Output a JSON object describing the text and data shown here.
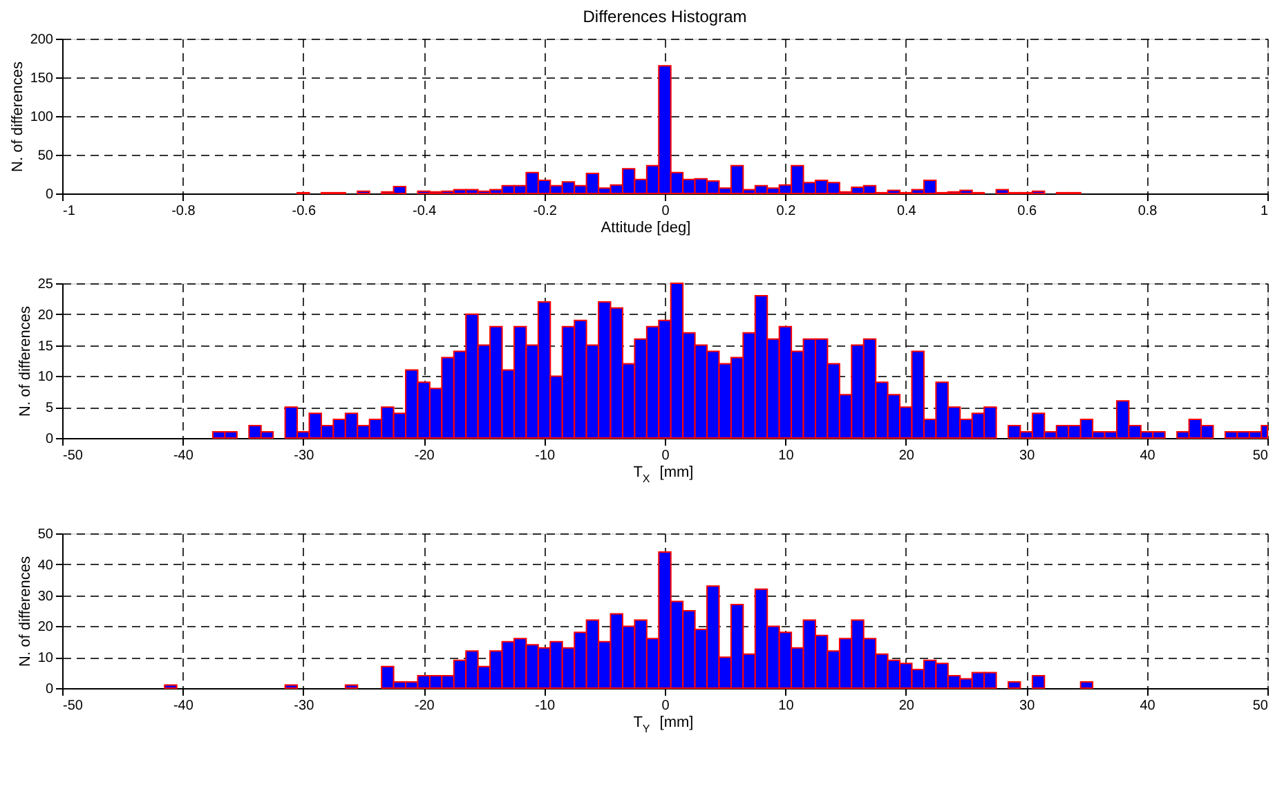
{
  "chart_data": [
    {
      "type": "histogram",
      "title": "Differences Histogram",
      "xlabel": "Attitude [deg]",
      "ylabel": "N. of differences",
      "color": "#0000ff",
      "grid": true,
      "bins": [
        -0.61,
        -0.59,
        -0.57,
        -0.55,
        -0.53,
        -0.51,
        -0.49,
        -0.47,
        -0.45,
        -0.43,
        -0.41,
        -0.39,
        -0.37,
        -0.35,
        -0.33,
        -0.31,
        -0.29,
        -0.27,
        -0.25,
        -0.23,
        -0.21,
        -0.19,
        -0.17,
        -0.15,
        -0.13,
        -0.11,
        -0.09,
        -0.07,
        -0.05,
        -0.03,
        -0.01,
        0.01,
        0.03,
        0.05,
        0.07,
        0.09,
        0.11,
        0.13,
        0.15,
        0.17,
        0.19,
        0.21,
        0.23,
        0.25,
        0.27,
        0.29,
        0.31,
        0.33,
        0.35,
        0.37,
        0.39,
        0.41,
        0.43,
        0.45,
        0.47,
        0.49,
        0.51,
        0.53,
        0.55,
        0.57,
        0.59,
        0.61,
        0.63,
        0.65,
        0.67,
        0.69
      ],
      "values": [
        1,
        0,
        1,
        1,
        0,
        3,
        0,
        2,
        9,
        0,
        3,
        2,
        3,
        5,
        5,
        3,
        5,
        10,
        10,
        27,
        17,
        10,
        15,
        10,
        26,
        7,
        11,
        32,
        18,
        36,
        165,
        27,
        18,
        19,
        16,
        7,
        36,
        5,
        10,
        7,
        11,
        36,
        14,
        17,
        14,
        2,
        8,
        10,
        1,
        4,
        1,
        5,
        17,
        1,
        2,
        4,
        1,
        0,
        5,
        1,
        1,
        3,
        0,
        1,
        1
      ],
      "xlim": [
        -1,
        1
      ],
      "xticks": [
        -1,
        -0.8,
        -0.6,
        -0.4,
        -0.2,
        0,
        0.2,
        0.4,
        0.6,
        0.8,
        1
      ],
      "ylim": [
        0,
        200
      ],
      "yticks": [
        0,
        50,
        100,
        150,
        200
      ]
    },
    {
      "type": "histogram",
      "xlabel": "T$_{X}$ [mm]",
      "ylabel": "N. of differences",
      "color": "#0000ff",
      "grid": true,
      "bins": [
        -37.5,
        -36.5,
        -35.5,
        -34.5,
        -33.5,
        -32.5,
        -31.5,
        -30.5,
        -29.5,
        -28.5,
        -27.5,
        -26.5,
        -25.5,
        -24.5,
        -23.5,
        -22.5,
        -21.5,
        -20.5,
        -19.5,
        -18.5,
        -17.5,
        -16.5,
        -15.5,
        -14.5,
        -13.5,
        -12.5,
        -11.5,
        -10.5,
        -9.5,
        -8.5,
        -7.5,
        -6.5,
        -5.5,
        -4.5,
        -3.5,
        -2.5,
        -1.5,
        -0.5,
        0.5,
        1.5,
        2.5,
        3.5,
        4.5,
        5.5,
        6.5,
        7.5,
        8.5,
        9.5,
        10.5,
        11.5,
        12.5,
        13.5,
        14.5,
        15.5,
        16.5,
        17.5,
        18.5,
        19.5,
        20.5,
        21.5,
        22.5,
        23.5,
        24.5,
        25.5,
        26.5,
        27.5,
        28.5,
        29.5,
        30.5,
        31.5,
        32.5,
        33.5,
        34.5,
        35.5,
        36.5,
        37.5,
        38.5,
        39.5,
        40.5,
        41.5,
        42.5,
        43.5,
        44.5,
        45.5,
        46.5,
        47.5,
        48.5,
        49.5,
        50
      ],
      "values": [
        1,
        1,
        0,
        2,
        1,
        0,
        5,
        1,
        4,
        2,
        3,
        4,
        2,
        3,
        5,
        4,
        11,
        9,
        8,
        13,
        14,
        20,
        15,
        18,
        11,
        18,
        15,
        22,
        10,
        18,
        19,
        15,
        22,
        21,
        12,
        16,
        18,
        19,
        25,
        17,
        15,
        14,
        12,
        13,
        17,
        23,
        16,
        18,
        14,
        16,
        16,
        12,
        7,
        15,
        16,
        9,
        7,
        5,
        14,
        3,
        9,
        5,
        3,
        4,
        5,
        0,
        2,
        1,
        4,
        1,
        2,
        2,
        3,
        1,
        1,
        6,
        2,
        1,
        1,
        0,
        1,
        3,
        2,
        0,
        1,
        1,
        1,
        2
      ],
      "xlim": [
        -50,
        50
      ],
      "xticks": [
        -50,
        -40,
        -30,
        -20,
        -10,
        0,
        10,
        20,
        30,
        40,
        50
      ],
      "ylim": [
        0,
        25
      ],
      "yticks": [
        0,
        5,
        10,
        15,
        20,
        25
      ]
    },
    {
      "type": "histogram",
      "xlabel": "T$_{Y}$ [mm]",
      "ylabel": "N. of differences",
      "color": "#0000ff",
      "grid": true,
      "bins": [
        -41.5,
        -40.5,
        -39.5,
        -38.5,
        -37.5,
        -36.5,
        -35.5,
        -34.5,
        -33.5,
        -32.5,
        -31.5,
        -30.5,
        -29.5,
        -28.5,
        -27.5,
        -26.5,
        -25.5,
        -24.5,
        -23.5,
        -22.5,
        -21.5,
        -20.5,
        -19.5,
        -18.5,
        -17.5,
        -16.5,
        -15.5,
        -14.5,
        -13.5,
        -12.5,
        -11.5,
        -10.5,
        -9.5,
        -8.5,
        -7.5,
        -6.5,
        -5.5,
        -4.5,
        -3.5,
        -2.5,
        -1.5,
        -0.5,
        0.5,
        1.5,
        2.5,
        3.5,
        4.5,
        5.5,
        6.5,
        7.5,
        8.5,
        9.5,
        10.5,
        11.5,
        12.5,
        13.5,
        14.5,
        15.5,
        16.5,
        17.5,
        18.5,
        19.5,
        20.5,
        21.5,
        22.5,
        23.5,
        24.5,
        25.5,
        26.5,
        27.5,
        28.5,
        29.5,
        30.5,
        31.5,
        32.5,
        33.5,
        34.5,
        35.5
      ],
      "values": [
        1,
        0,
        0,
        0,
        0,
        0,
        0,
        0,
        0,
        0,
        1,
        0,
        0,
        0,
        0,
        1,
        0,
        0,
        7,
        2,
        2,
        4,
        4,
        4,
        9,
        12,
        7,
        12,
        15,
        16,
        14,
        13,
        15,
        13,
        18,
        22,
        15,
        24,
        20,
        22,
        16,
        44,
        28,
        25,
        19,
        33,
        10,
        27,
        11,
        32,
        20,
        18,
        13,
        22,
        17,
        12,
        16,
        22,
        16,
        11,
        9,
        8,
        6,
        9,
        8,
        4,
        3,
        5,
        5,
        0,
        2,
        0,
        4,
        0,
        0,
        0,
        2
      ],
      "xlim": [
        -50,
        50
      ],
      "xticks": [
        -50,
        -40,
        -30,
        -20,
        -10,
        0,
        10,
        20,
        30,
        40,
        50
      ],
      "ylim": [
        0,
        50
      ],
      "yticks": [
        0,
        10,
        20,
        30,
        40,
        50
      ]
    }
  ]
}
